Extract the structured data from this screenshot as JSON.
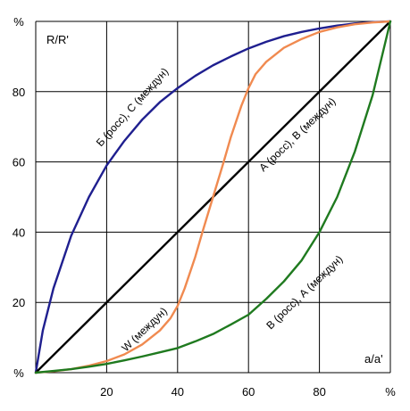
{
  "chart_data": {
    "type": "line",
    "xlabel": "a/a'",
    "ylabel": "R/R'",
    "xlim": [
      0,
      100
    ],
    "ylim": [
      0,
      100
    ],
    "x_ticks": [
      "%",
      "20",
      "40",
      "60",
      "80",
      "%"
    ],
    "y_ticks": [
      "%",
      "20",
      "40",
      "60",
      "80",
      "%"
    ],
    "grid": true,
    "series": [
      {
        "name": "Б (росс), С (междун)",
        "color": "#1f1f8f",
        "x": [
          0,
          2,
          5,
          10,
          15,
          20,
          25,
          30,
          35,
          40,
          45,
          50,
          55,
          60,
          65,
          70,
          75,
          80,
          85,
          90,
          95,
          100
        ],
        "y": [
          0,
          12,
          24,
          39,
          50,
          59,
          66,
          72,
          77,
          81,
          84.5,
          87.5,
          90,
          92.3,
          94.2,
          95.8,
          97,
          98,
          98.8,
          99.4,
          99.8,
          100
        ]
      },
      {
        "name": "А (росс), В (междун)",
        "color": "#000000",
        "x": [
          0,
          100
        ],
        "y": [
          0,
          100
        ]
      },
      {
        "name": "W (междун)",
        "color": "#f08a50",
        "x": [
          0,
          5,
          10,
          15,
          20,
          25,
          30,
          35,
          38,
          40,
          42,
          45,
          47,
          50,
          53,
          55,
          58,
          60,
          62,
          65,
          70,
          75,
          80,
          85,
          90,
          95,
          100
        ],
        "y": [
          0,
          0.4,
          1,
          2,
          3.3,
          5.2,
          8,
          12,
          15.5,
          19,
          24,
          33,
          40,
          50,
          60,
          67,
          76,
          81,
          85,
          88.5,
          92.5,
          95,
          97,
          98.3,
          99.2,
          99.7,
          100
        ]
      },
      {
        "name": "В (росс), А (междун)",
        "color": "#1f7a1f",
        "x": [
          0,
          5,
          10,
          15,
          20,
          25,
          30,
          35,
          40,
          45,
          50,
          55,
          60,
          65,
          70,
          75,
          80,
          85,
          90,
          95,
          100
        ],
        "y": [
          0,
          0.5,
          1,
          1.7,
          2.5,
          3.5,
          4.6,
          5.8,
          7,
          8.9,
          11,
          13.7,
          16.5,
          21,
          26,
          32,
          40,
          50,
          63,
          79,
          100
        ]
      }
    ]
  }
}
